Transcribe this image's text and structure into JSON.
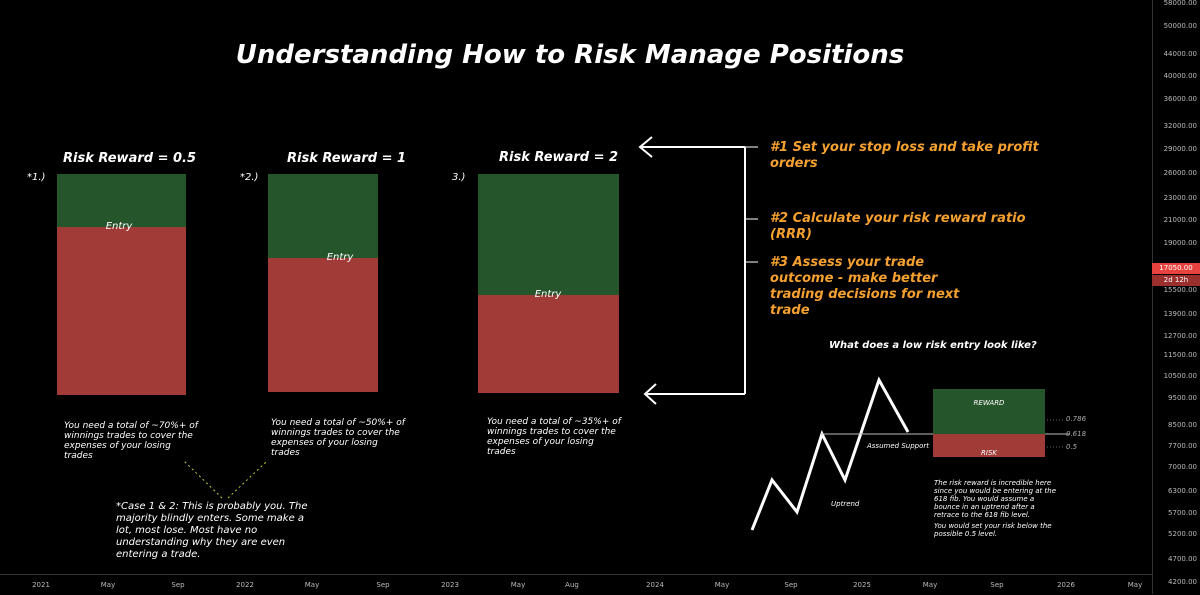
{
  "chart_data": {
    "title": "Understanding How to Risk Manage Positions",
    "type": "position-diagram",
    "y_axis": {
      "ticks": [
        "58000.00",
        "50000.00",
        "44000.00",
        "40000.00",
        "36000.00",
        "32000.00",
        "29000.00",
        "26000.00",
        "23000.00",
        "21000.00",
        "19000.00",
        "17000.00",
        "15500.00",
        "13900.00",
        "12700.00",
        "11500.00",
        "10500.00",
        "9500.00",
        "8500.00",
        "7700.00",
        "7000.00",
        "6300.00",
        "5700.00",
        "5200.00",
        "4700.00",
        "4200.00"
      ],
      "current_price": "17050.00",
      "current_countdown": "2d 12h"
    },
    "x_axis": {
      "ticks": [
        "2021",
        "May",
        "Sep",
        "2022",
        "May",
        "Sep",
        "2023",
        "May",
        "Aug",
        "2024",
        "May",
        "Sep",
        "2025",
        "May",
        "Sep",
        "2026",
        "May"
      ]
    },
    "positions": [
      {
        "label": "*1.)",
        "title": "Risk Reward = 0.5",
        "title_color": "#e8302a",
        "entry_label": "Entry",
        "reward_fraction": 0.242,
        "note": "You need a total of ~70%+ of winnings trades to cover the expenses of your losing trades"
      },
      {
        "label": "*2.)",
        "title": "Risk Reward = 1",
        "title_color": "#e8302a",
        "entry_label": "Entry",
        "reward_fraction": 0.386,
        "note": "You need a total of ~50%+ of winnings trades to cover the expenses of your losing trades"
      },
      {
        "label": "3.)",
        "title": "Risk Reward = 2",
        "title_color": "#3ecf3e",
        "entry_label": "Entry",
        "reward_fraction": 0.552,
        "note": "You need a total of ~35%+ of winnings trades to cover the expenses of your losing trades"
      }
    ],
    "case_note": "*Case 1 & 2: This is probably you. The majority blindly enters. Some make a lot, most lose. Most have no understanding why they are even entering a trade.",
    "steps": [
      "#1 Set your stop loss and take profit orders",
      "#2 Calculate your risk reward ratio (RRR)",
      "#3 Assess your trade outcome - make better trading decisions for next trade"
    ],
    "low_risk": {
      "heading": "What does a low risk entry look like?",
      "reward_label": "REWARD",
      "risk_label": "RISK",
      "support_label": "Assumed Support",
      "uptrend_label": "Uptrend",
      "fib_levels": [
        "0.786",
        "0.618",
        "0.5"
      ],
      "explanation_1": "The risk reward is incredible here since you would be entering at the 618 fib. You would assume a bounce in an uptrend after a retrace to the 618 fib level.",
      "explanation_2": "You would set your risk below the possible 0.5 level."
    },
    "colors": {
      "reward": "#24552b",
      "risk": "#a03b37",
      "arrow": "#ffffff",
      "step": "#f5a030"
    }
  }
}
